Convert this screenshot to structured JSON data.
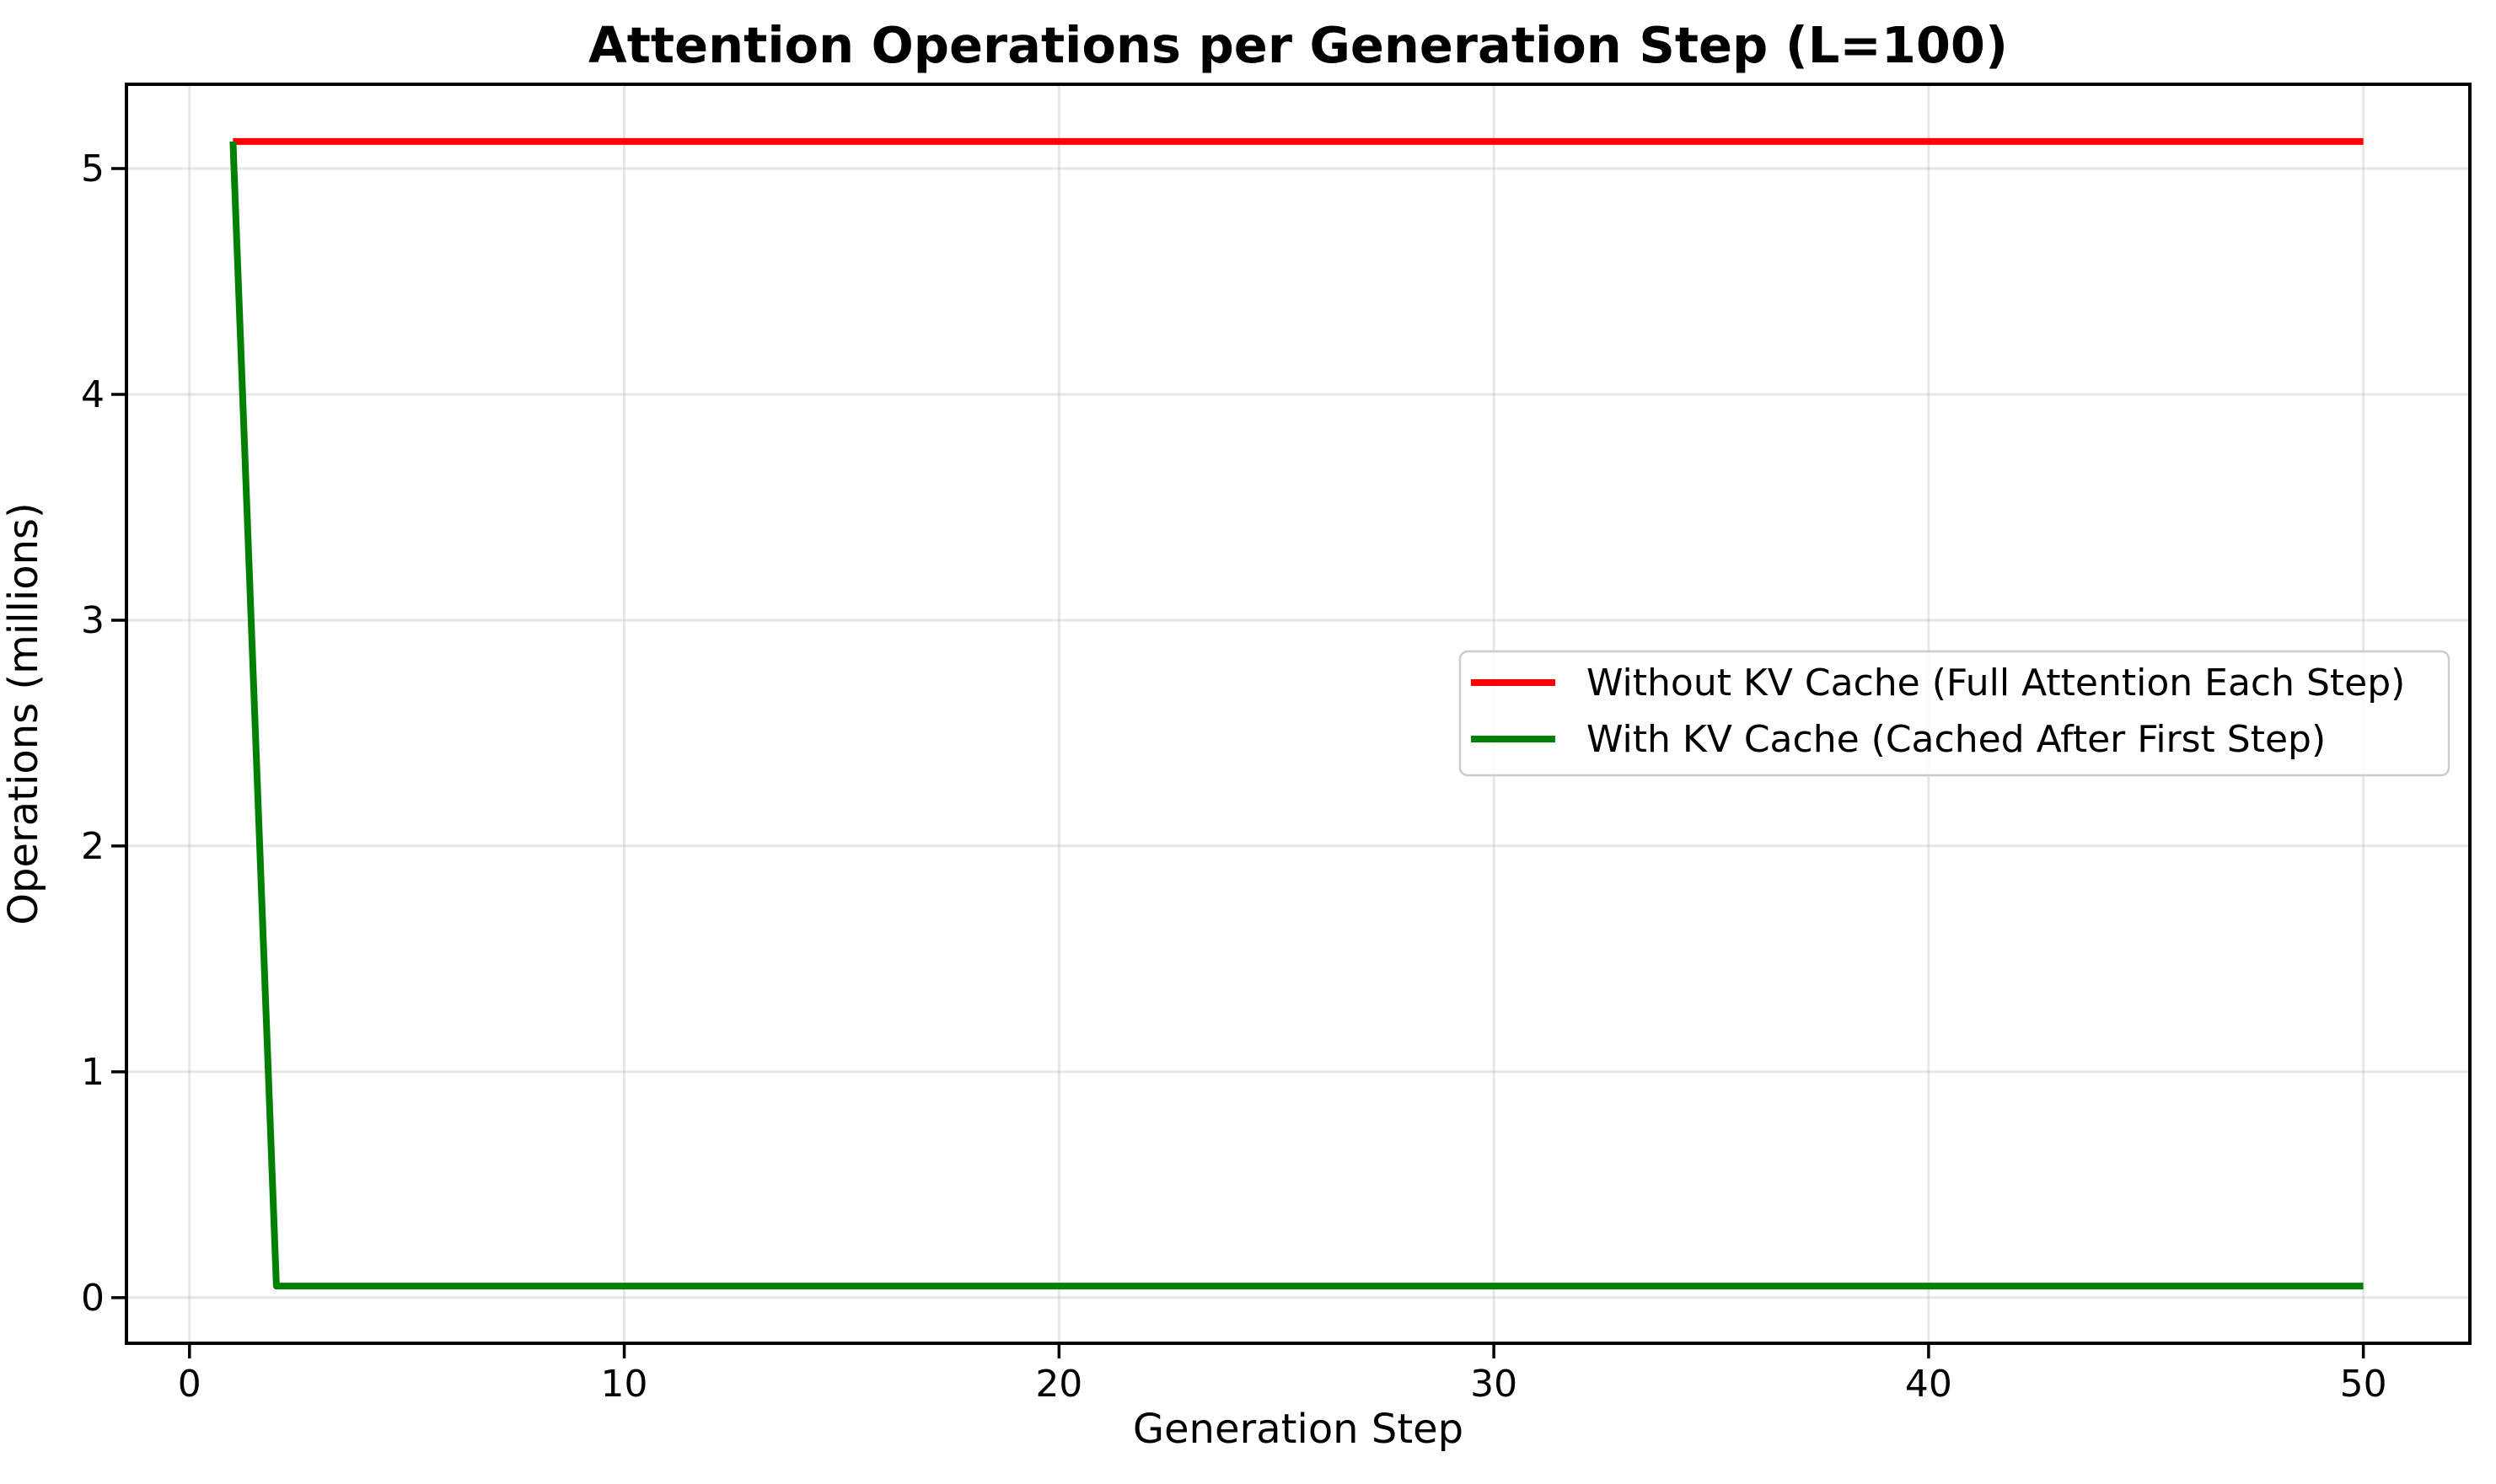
{
  "chart_data": {
    "type": "line",
    "title": "Attention Operations per Generation Step (L=100)",
    "xlabel": "Generation Step",
    "ylabel": "Operations (millions)",
    "xlim": [
      -1.45,
      52.45
    ],
    "ylim": [
      -0.2022,
      5.3734
    ],
    "xticks": [
      0,
      10,
      20,
      30,
      40,
      50
    ],
    "yticks": [
      0,
      1,
      2,
      3,
      4,
      5
    ],
    "grid": true,
    "legend_position": "center right",
    "series": [
      {
        "name": "Without KV Cache (Full Attention Each Step)",
        "color": "#ff0000",
        "x": [
          1,
          2,
          3,
          4,
          5,
          6,
          7,
          8,
          9,
          10,
          11,
          12,
          13,
          14,
          15,
          16,
          17,
          18,
          19,
          20,
          21,
          22,
          23,
          24,
          25,
          26,
          27,
          28,
          29,
          30,
          31,
          32,
          33,
          34,
          35,
          36,
          37,
          38,
          39,
          40,
          41,
          42,
          43,
          44,
          45,
          46,
          47,
          48,
          49,
          50
        ],
        "y": [
          5.12,
          5.12,
          5.12,
          5.12,
          5.12,
          5.12,
          5.12,
          5.12,
          5.12,
          5.12,
          5.12,
          5.12,
          5.12,
          5.12,
          5.12,
          5.12,
          5.12,
          5.12,
          5.12,
          5.12,
          5.12,
          5.12,
          5.12,
          5.12,
          5.12,
          5.12,
          5.12,
          5.12,
          5.12,
          5.12,
          5.12,
          5.12,
          5.12,
          5.12,
          5.12,
          5.12,
          5.12,
          5.12,
          5.12,
          5.12,
          5.12,
          5.12,
          5.12,
          5.12,
          5.12,
          5.12,
          5.12,
          5.12,
          5.12,
          5.12
        ]
      },
      {
        "name": "With KV Cache (Cached After First Step)",
        "color": "#008000",
        "x": [
          1,
          2,
          3,
          4,
          5,
          6,
          7,
          8,
          9,
          10,
          11,
          12,
          13,
          14,
          15,
          16,
          17,
          18,
          19,
          20,
          21,
          22,
          23,
          24,
          25,
          26,
          27,
          28,
          29,
          30,
          31,
          32,
          33,
          34,
          35,
          36,
          37,
          38,
          39,
          40,
          41,
          42,
          43,
          44,
          45,
          46,
          47,
          48,
          49,
          50
        ],
        "y": [
          5.12,
          0.0512,
          0.0512,
          0.0512,
          0.0512,
          0.0512,
          0.0512,
          0.0512,
          0.0512,
          0.0512,
          0.0512,
          0.0512,
          0.0512,
          0.0512,
          0.0512,
          0.0512,
          0.0512,
          0.0512,
          0.0512,
          0.0512,
          0.0512,
          0.0512,
          0.0512,
          0.0512,
          0.0512,
          0.0512,
          0.0512,
          0.0512,
          0.0512,
          0.0512,
          0.0512,
          0.0512,
          0.0512,
          0.0512,
          0.0512,
          0.0512,
          0.0512,
          0.0512,
          0.0512,
          0.0512,
          0.0512,
          0.0512,
          0.0512,
          0.0512,
          0.0512,
          0.0512,
          0.0512,
          0.0512,
          0.0512,
          0.0512
        ]
      }
    ]
  },
  "colors": {
    "grid": "rgba(176,176,176,0.3)",
    "spine": "#000000",
    "tick": "#000000",
    "legend_border": "#cccccc",
    "legend_bg": "rgba(255,255,255,0.8)"
  }
}
